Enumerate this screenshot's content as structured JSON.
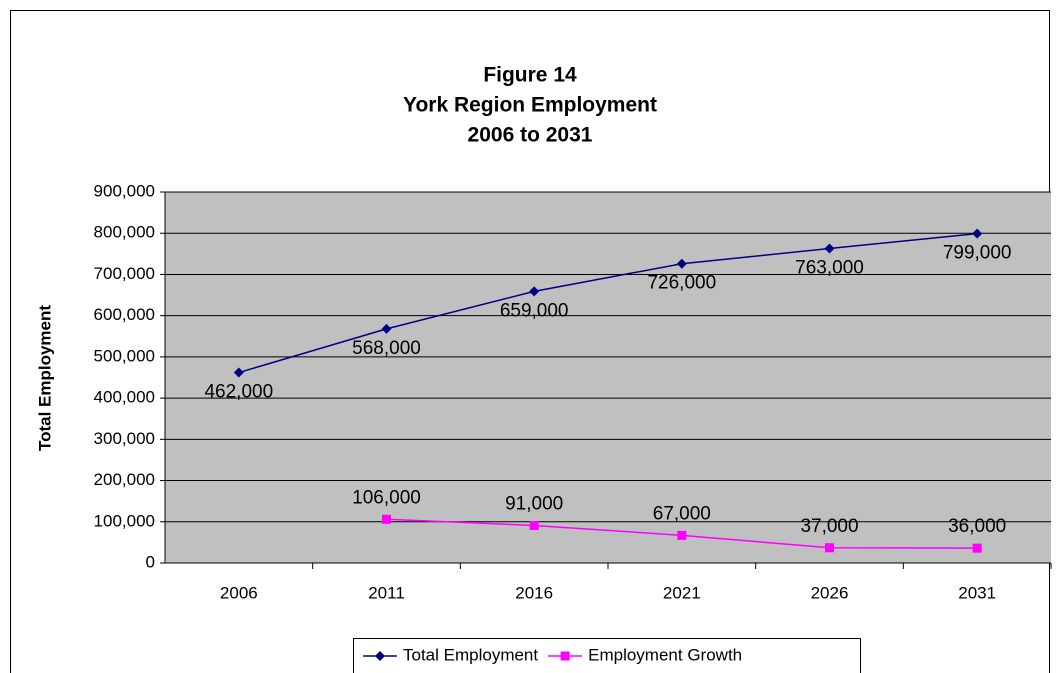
{
  "chart_data": {
    "type": "line",
    "title": [
      "Figure 14",
      "York Region Employment",
      "2006 to 2031"
    ],
    "y_label": "Total Employment",
    "categories": [
      "2006",
      "2011",
      "2016",
      "2021",
      "2026",
      "2031"
    ],
    "series": [
      {
        "name": "Total Employment",
        "color": "#000080",
        "marker": "diamond",
        "values": [
          462000,
          568000,
          659000,
          726000,
          763000,
          799000
        ],
        "value_labels": [
          "462,000",
          "568,000",
          "659,000",
          "726,000",
          "763,000",
          "799,000"
        ]
      },
      {
        "name": "Employment Growth",
        "color": "#ff00ff",
        "marker": "square",
        "values": [
          null,
          106000,
          91000,
          67000,
          37000,
          36000
        ],
        "value_labels": [
          null,
          "106,000",
          "91,000",
          "67,000",
          "37,000",
          "36,000"
        ]
      }
    ],
    "ylim": [
      0,
      900000
    ],
    "yticks": [
      0,
      {
        "value": 100000,
        "label": "100,000"
      },
      {
        "value": 200000,
        "label": "200,000"
      },
      {
        "value": 300000,
        "label": "300,000"
      },
      {
        "value": 400000,
        "label": "400,000"
      },
      {
        "value": 500000,
        "label": "500,000"
      },
      {
        "value": 600000,
        "label": "600,000"
      },
      {
        "value": 700000,
        "label": "700,000"
      },
      {
        "value": 800000,
        "label": "800,000"
      },
      {
        "value": 900000,
        "label": "900,000"
      }
    ],
    "grid": true,
    "legend": "bottom",
    "plot_background": "#c0c0c0"
  }
}
